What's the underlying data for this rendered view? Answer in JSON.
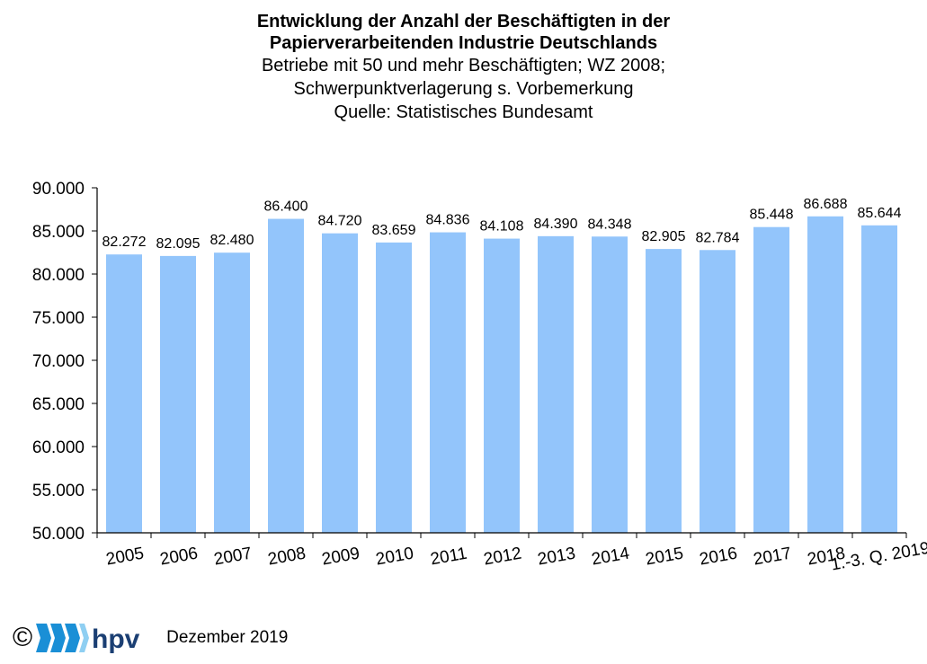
{
  "title": {
    "line1": "Entwicklung der Anzahl der Beschäftigten in der",
    "line2": "Papierverarbeitenden Industrie Deutschlands",
    "line3": "Betriebe mit 50 und mehr Beschäftigten; WZ 2008;",
    "line4": "Schwerpunktverlagerung s. Vorbemerkung",
    "line5": "Quelle: Statistisches Bundesamt"
  },
  "footer": {
    "copyright": "©",
    "logo": "hpv",
    "date": "Dezember 2019"
  },
  "colors": {
    "bar": "#93c5fb",
    "axis": "#000000",
    "logo_blue": "#1a8fd6",
    "logo_dark": "#1b3f73"
  },
  "chart_data": {
    "type": "bar",
    "categories": [
      "2005",
      "2006",
      "2007",
      "2008",
      "2009",
      "2010",
      "2011",
      "2012",
      "2013",
      "2014",
      "2015",
      "2016",
      "2017",
      "2018",
      "1.-3. Q. 2019"
    ],
    "values": [
      82272,
      82095,
      82480,
      86400,
      84720,
      83659,
      84836,
      84108,
      84390,
      84348,
      82905,
      82784,
      85448,
      86688,
      85644
    ],
    "value_labels": [
      "82.272",
      "82.095",
      "82.480",
      "86.400",
      "84.720",
      "83.659",
      "84.836",
      "84.108",
      "84.390",
      "84.348",
      "82.905",
      "82.784",
      "85.448",
      "86.688",
      "85.644"
    ],
    "ylim": [
      50000,
      90000
    ],
    "yticks": [
      50000,
      55000,
      60000,
      65000,
      70000,
      75000,
      80000,
      85000,
      90000
    ],
    "ytick_labels": [
      "50.000",
      "55.000",
      "60.000",
      "65.000",
      "70.000",
      "75.000",
      "80.000",
      "85.000",
      "90.000"
    ],
    "grid": false,
    "legend": "none",
    "xlabel": "",
    "ylabel": ""
  }
}
